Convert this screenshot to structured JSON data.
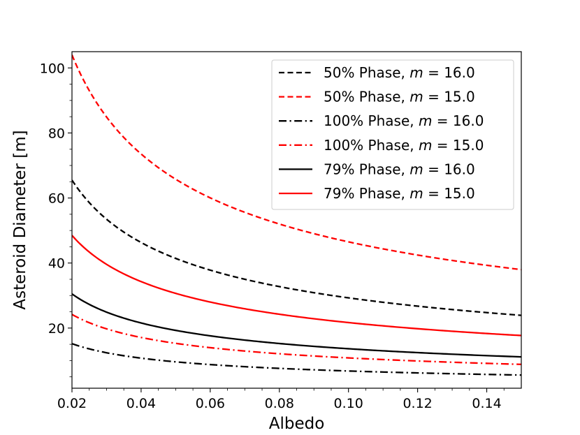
{
  "chart_data": {
    "type": "line",
    "title": "",
    "xlabel": "Albedo",
    "ylabel": "Asteroid Diameter [m]",
    "xlim": [
      0.02,
      0.15
    ],
    "ylim": [
      1.5,
      105
    ],
    "xticks": [
      0.02,
      0.04,
      0.06,
      0.08,
      0.1,
      0.12,
      0.14
    ],
    "xtick_labels": [
      "0.02",
      "0.04",
      "0.06",
      "0.08",
      "0.10",
      "0.12",
      "0.14"
    ],
    "yticks": [
      20,
      40,
      60,
      80,
      100
    ],
    "ytick_labels": [
      "20",
      "40",
      "60",
      "80",
      "100"
    ],
    "grid": false,
    "legend_position": "top-right",
    "model": "D = k / sqrt(albedo), with k = D(0.02) * sqrt(0.02)",
    "series": [
      {
        "name_prefix": "50% Phase, ",
        "name_m": "m",
        "name_eq": " = 16.0",
        "color": "#000000",
        "linestyle": "dashed",
        "d_at_0_02": 65.5,
        "d_at_0_15": 24.0
      },
      {
        "name_prefix": "50% Phase, ",
        "name_m": "m",
        "name_eq": " = 15.0",
        "color": "#ff0000",
        "linestyle": "dashed",
        "d_at_0_02": 104.0,
        "d_at_0_15": 38.0
      },
      {
        "name_prefix": "100% Phase, ",
        "name_m": "m",
        "name_eq": " = 16.0",
        "color": "#000000",
        "linestyle": "dashdot",
        "d_at_0_02": 15.2,
        "d_at_0_15": 5.5
      },
      {
        "name_prefix": "100% Phase, ",
        "name_m": "m",
        "name_eq": " = 15.0",
        "color": "#ff0000",
        "linestyle": "dashdot",
        "d_at_0_02": 24.2,
        "d_at_0_15": 8.8
      },
      {
        "name_prefix": "79% Phase, ",
        "name_m": "m",
        "name_eq": " = 16.0",
        "color": "#000000",
        "linestyle": "solid",
        "d_at_0_02": 30.5,
        "d_at_0_15": 11.0
      },
      {
        "name_prefix": "79% Phase, ",
        "name_m": "m",
        "name_eq": " = 15.0",
        "color": "#ff0000",
        "linestyle": "solid",
        "d_at_0_02": 48.5,
        "d_at_0_15": 17.7
      }
    ]
  }
}
